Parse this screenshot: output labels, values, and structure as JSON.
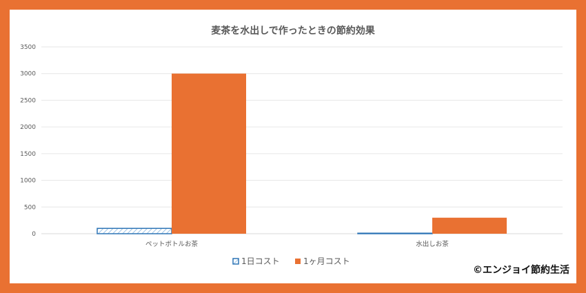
{
  "copyright": "©エンジョイ節約生活",
  "colors": {
    "border": "#e97132",
    "series_day": "#5b9bd5",
    "series_day_outline": "#2e75b6",
    "series_month": "#e97132",
    "gridline": "#e6e6e6",
    "text": "#595959"
  },
  "chart_data": {
    "type": "bar",
    "title": "麦茶を水出しで作ったときの節約効果",
    "categories": [
      "ペットボトルお茶",
      "水出しお茶"
    ],
    "series": [
      {
        "name": "1日コスト",
        "values": [
          100,
          10
        ],
        "pattern": "hatched"
      },
      {
        "name": "1ヶ月コスト",
        "values": [
          3000,
          300
        ],
        "pattern": "solid"
      }
    ],
    "yticks": [
      "0",
      "500",
      "1000",
      "1500",
      "2000",
      "2500",
      "3000",
      "3500"
    ],
    "ylim": [
      0,
      3500
    ],
    "grid": true,
    "legend": "bottom"
  }
}
